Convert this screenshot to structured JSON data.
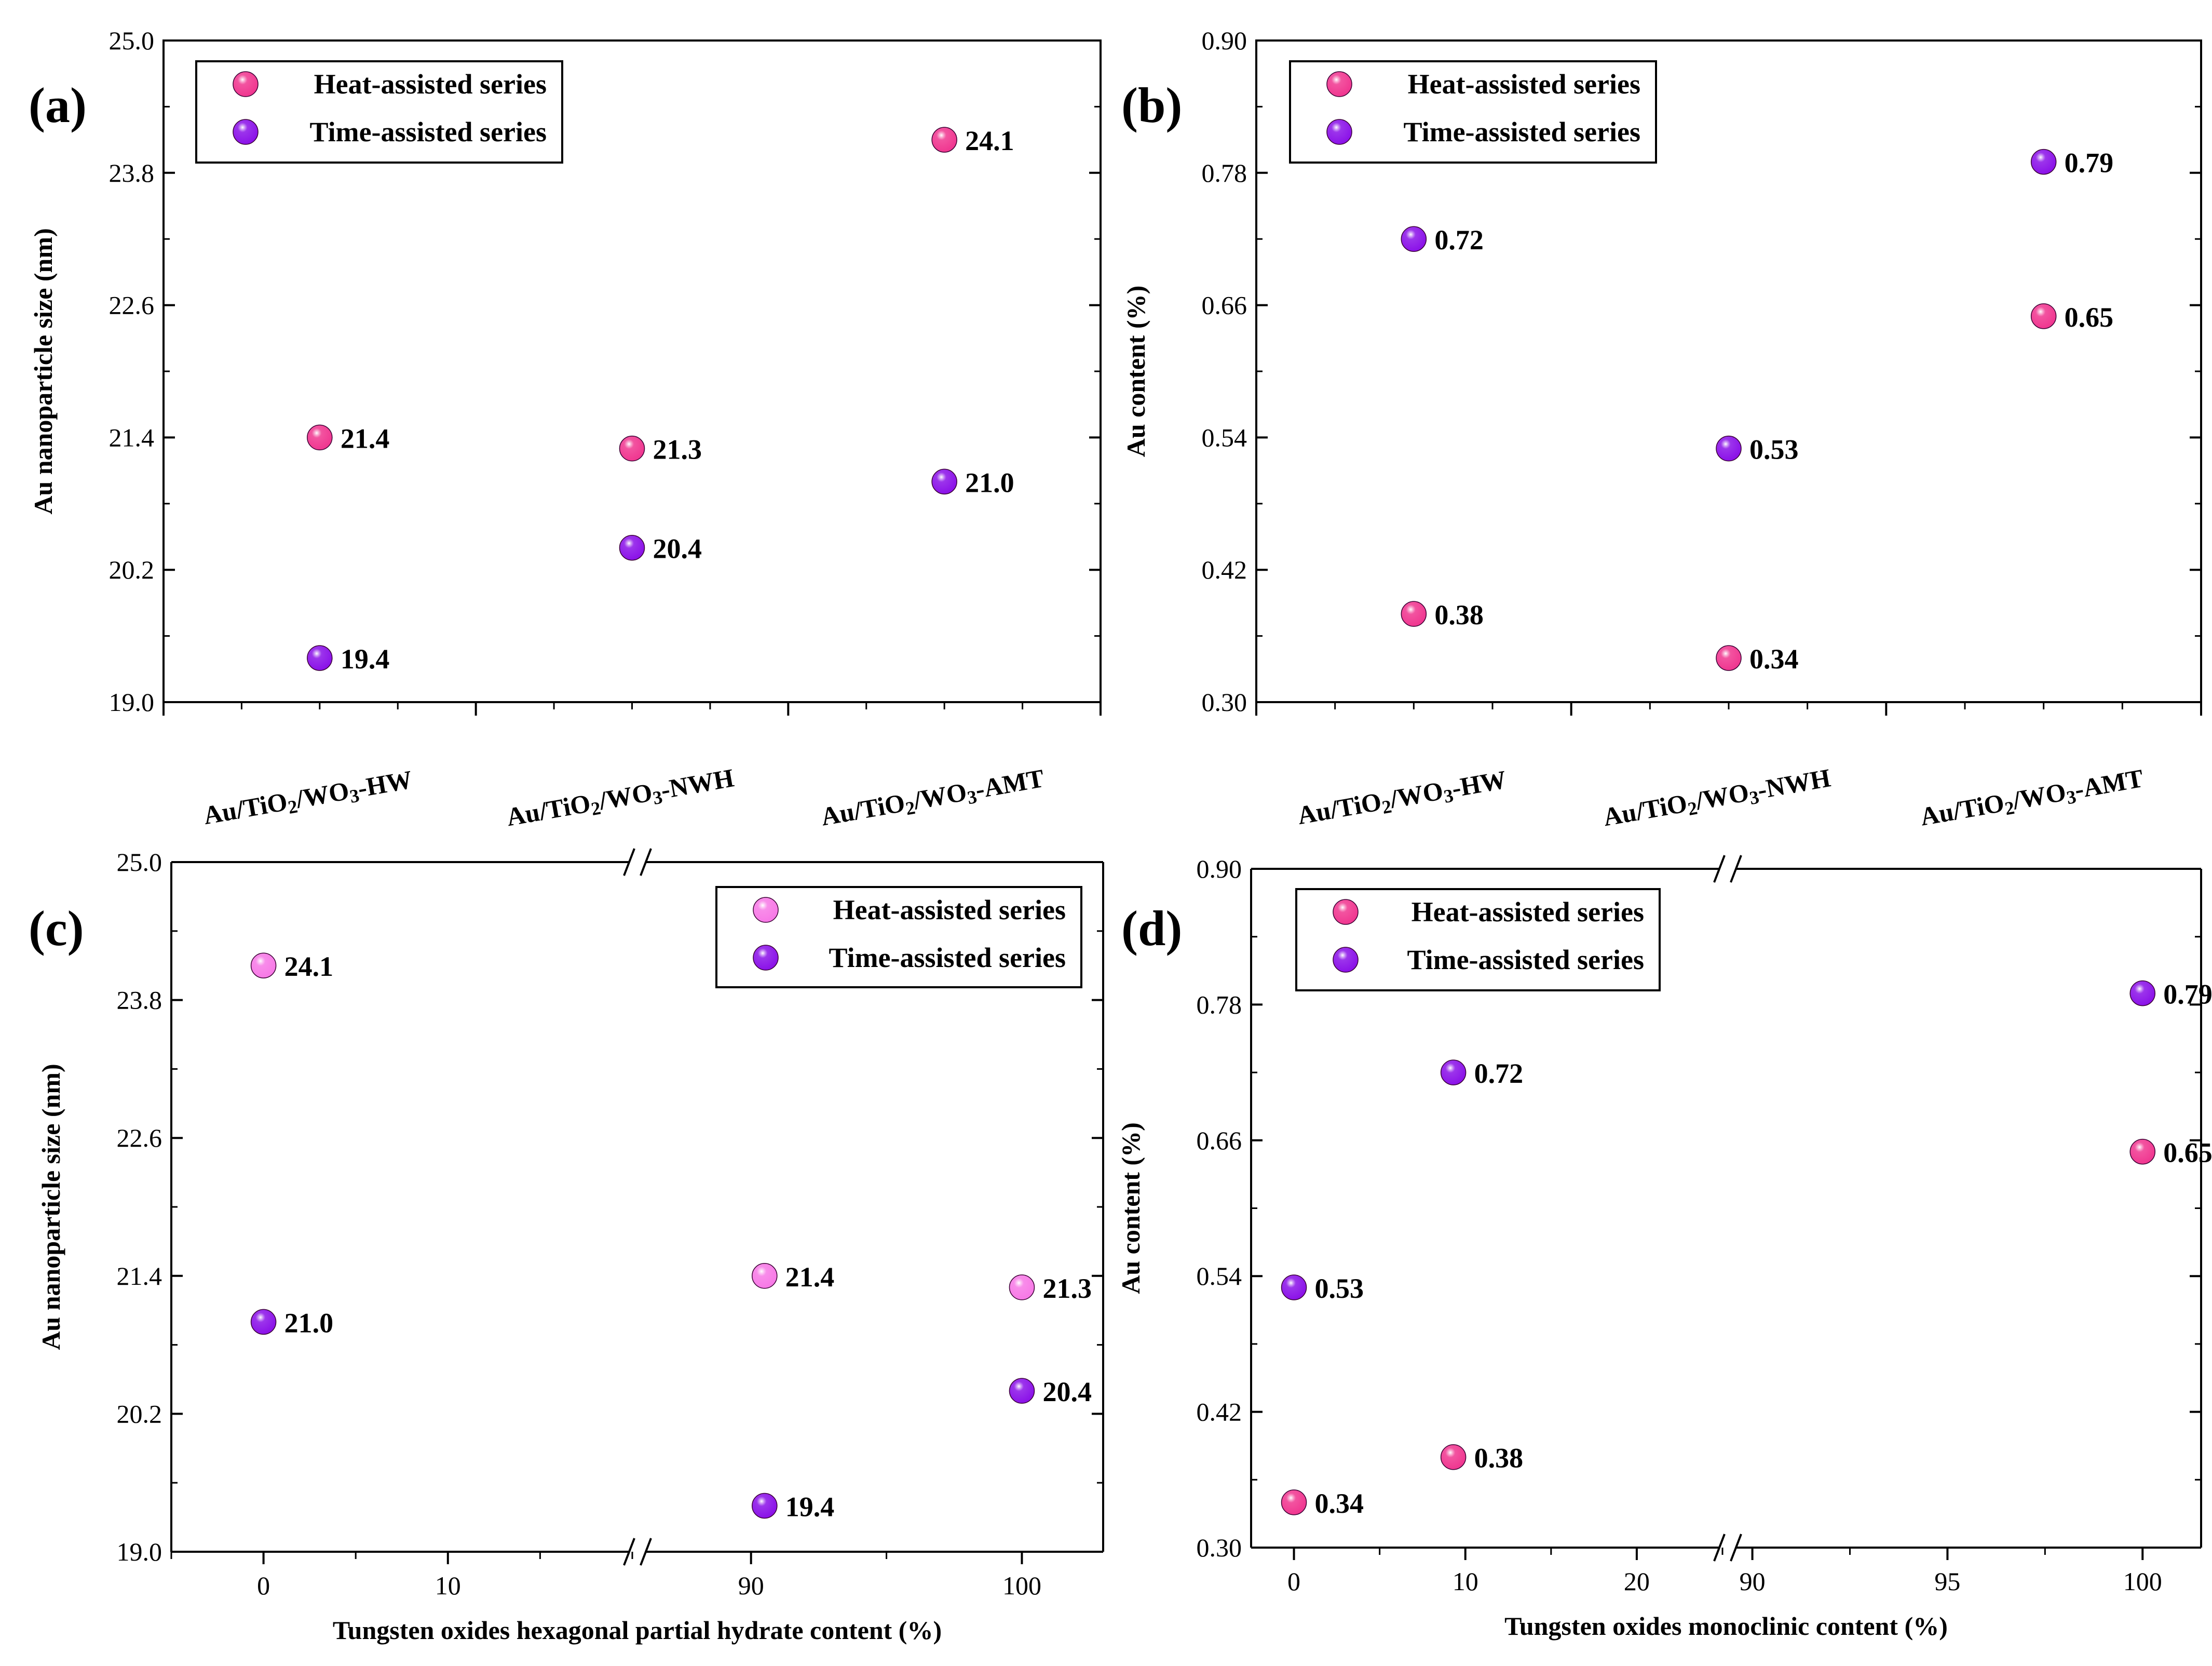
{
  "colors": {
    "heat": "#f0358f",
    "heat_light": "#f778e6",
    "time": "#8a10e8",
    "axis": "#000000"
  },
  "chart_data": [
    {
      "panel": "(a)",
      "type": "scatter",
      "ylabel": "Au nanoparticle size (nm)",
      "xlabel": "",
      "ylim": [
        19.0,
        25.0
      ],
      "yticks": [
        "19.0",
        "20.2",
        "21.4",
        "22.6",
        "23.8",
        "25.0"
      ],
      "categories": [
        {
          "main": "Au/TiO",
          "sub": "2",
          "mid": "/WO",
          "sub2": "3",
          "end": "-HW"
        },
        {
          "main": "Au/TiO",
          "sub": "2",
          "mid": "/WO",
          "sub2": "3",
          "end": "-NWH"
        },
        {
          "main": "Au/TiO",
          "sub": "2",
          "mid": "/WO",
          "sub2": "3",
          "end": "-AMT"
        }
      ],
      "legend": [
        "Heat-assisted series",
        "Time-assisted series"
      ],
      "legend_position": "top-left",
      "series": [
        {
          "name": "Heat-assisted series",
          "x": [
            0,
            1,
            2
          ],
          "values": [
            21.4,
            21.3,
            24.1
          ],
          "labels": [
            "21.4",
            "21.3",
            "24.1"
          ]
        },
        {
          "name": "Time-assisted series",
          "x": [
            0,
            1,
            2
          ],
          "values": [
            19.4,
            20.4,
            21.0
          ],
          "labels": [
            "19.4",
            "20.4",
            "21.0"
          ]
        }
      ]
    },
    {
      "panel": "(b)",
      "type": "scatter",
      "ylabel": "Au content (%)",
      "xlabel": "",
      "ylim": [
        0.3,
        0.9
      ],
      "yticks": [
        "0.30",
        "0.42",
        "0.54",
        "0.66",
        "0.78",
        "0.90"
      ],
      "categories": [
        {
          "main": "Au/TiO",
          "sub": "2",
          "mid": "/WO",
          "sub2": "3",
          "end": "-HW"
        },
        {
          "main": "Au/TiO",
          "sub": "2",
          "mid": "/WO",
          "sub2": "3",
          "end": "-NWH"
        },
        {
          "main": "Au/TiO",
          "sub": "2",
          "mid": "/WO",
          "sub2": "3",
          "end": "-AMT"
        }
      ],
      "legend": [
        "Heat-assisted series",
        "Time-assisted series"
      ],
      "legend_position": "top-left",
      "series": [
        {
          "name": "Heat-assisted series",
          "x": [
            0,
            1,
            2
          ],
          "values": [
            0.38,
            0.34,
            0.65
          ],
          "labels": [
            "0.38",
            "0.34",
            "0.65"
          ]
        },
        {
          "name": "Time-assisted series",
          "x": [
            0,
            1,
            2
          ],
          "values": [
            0.72,
            0.53,
            0.79
          ],
          "labels": [
            "0.72",
            "0.53",
            "0.79"
          ]
        }
      ]
    },
    {
      "panel": "(c)",
      "type": "scatter",
      "ylabel": "Au nanoparticle size (nm)",
      "xlabel": "Tungsten oxides hexagonal partial hydrate content (%)",
      "ylim": [
        19.0,
        25.0
      ],
      "yticks": [
        "19.0",
        "20.2",
        "21.4",
        "22.6",
        "23.8",
        "25.0"
      ],
      "xticks": [
        "0",
        "10",
        "90",
        "100"
      ],
      "x_segments": [
        [
          -5,
          20
        ],
        [
          86,
          103
        ]
      ],
      "legend": [
        "Heat-assisted series",
        "Time-assisted series"
      ],
      "legend_position": "top-right",
      "series": [
        {
          "name": "Heat-assisted series",
          "x": [
            0,
            90.5,
            100
          ],
          "values": [
            24.1,
            21.4,
            21.3
          ],
          "labels": [
            "24.1",
            "21.4",
            "21.3"
          ]
        },
        {
          "name": "Time-assisted series",
          "x": [
            0,
            100,
            90.5
          ],
          "values": [
            21.0,
            20.4,
            19.4
          ],
          "labels": [
            "21.0",
            "20.4",
            "19.4"
          ]
        }
      ]
    },
    {
      "panel": "(d)",
      "type": "scatter",
      "ylabel": "Au content (%)",
      "xlabel": "Tungsten oxides monoclinic content (%)",
      "ylim": [
        0.3,
        0.9
      ],
      "yticks": [
        "0.30",
        "0.42",
        "0.54",
        "0.66",
        "0.78",
        "0.90"
      ],
      "xticks": [
        "0",
        "10",
        "20",
        "90",
        "95",
        "100"
      ],
      "x_segments": [
        [
          -2.5,
          25
        ],
        [
          89.5,
          101.5
        ]
      ],
      "legend": [
        "Heat-assisted series",
        "Time-assisted series"
      ],
      "legend_position": "top-left",
      "series": [
        {
          "name": "Heat-assisted series",
          "x": [
            0,
            9.3,
            100
          ],
          "values": [
            0.34,
            0.38,
            0.65
          ],
          "labels": [
            "0.34",
            "0.38",
            "0.65"
          ]
        },
        {
          "name": "Time-assisted series",
          "x": [
            0,
            9.3,
            100
          ],
          "values": [
            0.53,
            0.72,
            0.79
          ],
          "labels": [
            "0.53",
            "0.72",
            "0.79"
          ]
        }
      ]
    }
  ]
}
